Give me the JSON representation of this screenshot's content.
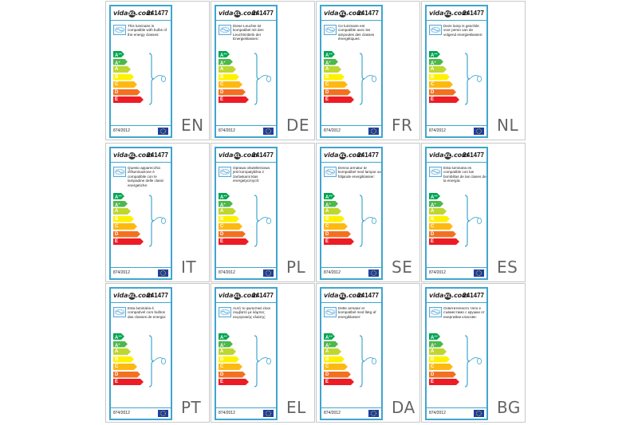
{
  "label": {
    "brand_pre": "vida",
    "brand_mid": "XL",
    "brand_post": ".com",
    "model": "241477",
    "regulation": "874/2012",
    "classes": [
      {
        "letter": "A",
        "sup": "++",
        "color": "#00a651"
      },
      {
        "letter": "A",
        "sup": "+",
        "color": "#4cb848"
      },
      {
        "letter": "A",
        "sup": "",
        "color": "#bed630"
      },
      {
        "letter": "B",
        "sup": "",
        "color": "#fff200"
      },
      {
        "letter": "C",
        "sup": "",
        "color": "#fdb913"
      },
      {
        "letter": "D",
        "sup": "",
        "color": "#f37021"
      },
      {
        "letter": "E",
        "sup": "",
        "color": "#ed1c24"
      }
    ]
  },
  "languages": [
    {
      "code": "EN",
      "text": "This luminaire is compatible with bulbs of the energy classes:"
    },
    {
      "code": "DE",
      "text": "Diese Leuchte ist kompatibel mit den Leuchtmitteln der Energieklassen:"
    },
    {
      "code": "FR",
      "text": "Ce luminaire est compatible avec les ampoules des classes énergétiques:"
    },
    {
      "code": "NL",
      "text": "Deze lamp is geschikt voor peren van de volgend energieklassen:"
    },
    {
      "code": "IT",
      "text": "Questo apparecchio d'illuminazione è compatibile con le lampadine delle classi energetiche:"
    },
    {
      "code": "PL",
      "text": "Oprawa oświetleniowa jest kompatybilna z żarówkami klas energetycznych:"
    },
    {
      "code": "SE",
      "text": "Denna armatur är kompatibel med lampor av följande energiklasser:"
    },
    {
      "code": "ES",
      "text": "Esta luminaria es compatible con las bombillas de las clases de la energía:"
    },
    {
      "code": "PT",
      "text": "Esta luminária é compatível com bulbos das classes de energia:"
    },
    {
      "code": "EL",
      "text": "Αυτό το φωτιστικό είναι συμβατό με λάμπες ενεργειακής κλάσης:"
    },
    {
      "code": "DA",
      "text": "Dette armatur er kompatibel med llæg af energiklasser:"
    },
    {
      "code": "BG",
      "text": "Осветителното тяло е съвместимо с крушки от енергийни класове:"
    }
  ]
}
